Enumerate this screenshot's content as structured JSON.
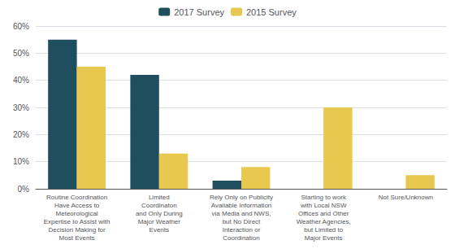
{
  "chart_data": {
    "type": "bar",
    "categories": [
      "Routine Coordination\nHave Access to\nMeteorological\nExpertise to Assist with\nDecision Making for\nMost Events",
      "Limited\nCoordinaton\nand Only During\nMajor Weather\nEvents",
      "Rely Only on Publicity\nAvailable Information\nvia Media and NWS,\nbut No Direct\nInteraction or\nCoordination",
      "Starting to work\nwith Local NSW\nOffices and Other\nWeather Agencies,\nbut Limited to\nMajor Events",
      "Not Sure/Unknown"
    ],
    "series": [
      {
        "name": "2017 Survey",
        "color": "#1f4e5f",
        "values": [
          55,
          42,
          3,
          0,
          0
        ]
      },
      {
        "name": "2015 Survey",
        "color": "#e8c84e",
        "values": [
          45,
          13,
          8,
          30,
          5
        ]
      }
    ],
    "ylim": [
      0,
      60
    ],
    "yticks": [
      {
        "value": 0,
        "label": "0%"
      },
      {
        "value": 10,
        "label": "10%"
      },
      {
        "value": 20,
        "label": "20%"
      },
      {
        "value": 30,
        "label": "30%"
      },
      {
        "value": 40,
        "label": "40%"
      },
      {
        "value": 50,
        "label": "50%"
      },
      {
        "value": 60,
        "label": "60%"
      }
    ],
    "grid": true,
    "legend": "upper center"
  }
}
